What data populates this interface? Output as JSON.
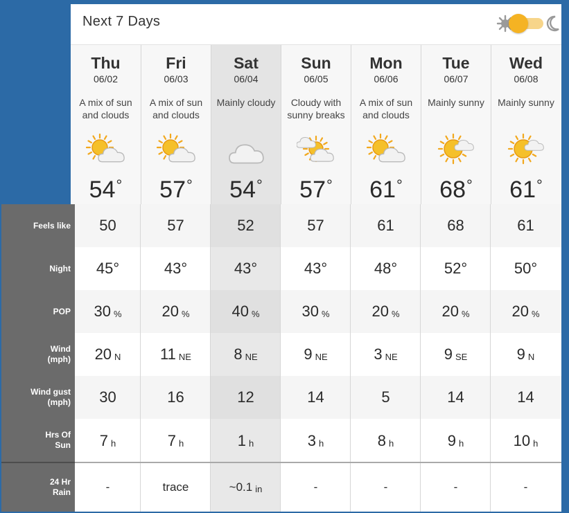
{
  "header": {
    "title": "Next 7 Days",
    "toggle_state": "light",
    "accent_color": "#f5b323"
  },
  "days": [
    {
      "name": "Thu",
      "date": "06/02",
      "desc": "A mix of sun and clouds",
      "icon": "sun-cloud-icon",
      "temp": "54",
      "unit": "°"
    },
    {
      "name": "Fri",
      "date": "06/03",
      "desc": "A mix of sun and clouds",
      "icon": "sun-cloud-icon",
      "temp": "57",
      "unit": "°"
    },
    {
      "name": "Sat",
      "date": "06/04",
      "desc": "Mainly cloudy",
      "icon": "cloud-icon",
      "temp": "54",
      "unit": "°"
    },
    {
      "name": "Sun",
      "date": "06/05",
      "desc": "Cloudy with sunny breaks",
      "icon": "cloud-sun-icon",
      "temp": "57",
      "unit": "°"
    },
    {
      "name": "Mon",
      "date": "06/06",
      "desc": "A mix of sun and clouds",
      "icon": "sun-cloud-icon",
      "temp": "61",
      "unit": "°"
    },
    {
      "name": "Tue",
      "date": "06/07",
      "desc": "Mainly sunny",
      "icon": "sun-small-cloud-icon",
      "temp": "68",
      "unit": "°"
    },
    {
      "name": "Wed",
      "date": "06/08",
      "desc": "Mainly sunny",
      "icon": "sun-small-cloud-icon",
      "temp": "61",
      "unit": "°"
    }
  ],
  "row_labels": {
    "feels_like": "Feels like",
    "night": "Night",
    "pop": "POP",
    "wind": "Wind (mph)",
    "wind_gust": "Wind gust (mph)",
    "hrs_sun": "Hrs Of Sun",
    "rain": "24 Hr Rain"
  },
  "rows": {
    "feels_like": [
      {
        "v": "50"
      },
      {
        "v": "57"
      },
      {
        "v": "52"
      },
      {
        "v": "57"
      },
      {
        "v": "61"
      },
      {
        "v": "68"
      },
      {
        "v": "61"
      }
    ],
    "night": [
      {
        "v": "45",
        "u": "°"
      },
      {
        "v": "43",
        "u": "°"
      },
      {
        "v": "43",
        "u": "°"
      },
      {
        "v": "43",
        "u": "°"
      },
      {
        "v": "48",
        "u": "°"
      },
      {
        "v": "52",
        "u": "°"
      },
      {
        "v": "50",
        "u": "°"
      }
    ],
    "pop": [
      {
        "v": "30",
        "u": "%"
      },
      {
        "v": "20",
        "u": "%"
      },
      {
        "v": "40",
        "u": "%"
      },
      {
        "v": "30",
        "u": "%"
      },
      {
        "v": "20",
        "u": "%"
      },
      {
        "v": "20",
        "u": "%"
      },
      {
        "v": "20",
        "u": "%"
      }
    ],
    "wind": [
      {
        "v": "20",
        "u": "N"
      },
      {
        "v": "11",
        "u": "NE"
      },
      {
        "v": "8",
        "u": "NE"
      },
      {
        "v": "9",
        "u": "NE"
      },
      {
        "v": "3",
        "u": "NE"
      },
      {
        "v": "9",
        "u": "SE"
      },
      {
        "v": "9",
        "u": "N"
      }
    ],
    "wind_gust": [
      {
        "v": "30"
      },
      {
        "v": "16"
      },
      {
        "v": "12"
      },
      {
        "v": "14"
      },
      {
        "v": "5"
      },
      {
        "v": "14"
      },
      {
        "v": "14"
      }
    ],
    "hrs_sun": [
      {
        "v": "7",
        "u": "h"
      },
      {
        "v": "7",
        "u": "h"
      },
      {
        "v": "1",
        "u": "h"
      },
      {
        "v": "3",
        "u": "h"
      },
      {
        "v": "8",
        "u": "h"
      },
      {
        "v": "9",
        "u": "h"
      },
      {
        "v": "10",
        "u": "h"
      }
    ],
    "rain": [
      {
        "v": "-"
      },
      {
        "v": "trace"
      },
      {
        "v": "~0.1",
        "u": "in"
      },
      {
        "v": "-"
      },
      {
        "v": "-"
      },
      {
        "v": "-"
      },
      {
        "v": "-"
      }
    ]
  },
  "highlight_day_index": 2,
  "colors": {
    "background": "#2c6aa6",
    "label_column": "#6b6b6b",
    "sun": "#f5b323",
    "cloud": "#e8e8e8"
  }
}
